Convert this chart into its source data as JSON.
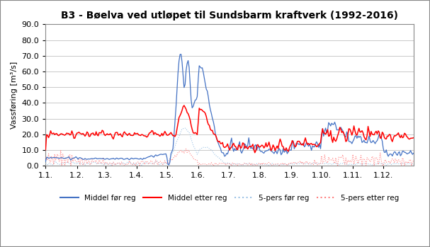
{
  "title": "B3 - Bøelva ved utløpet til Sundsbarm kraftverk (1992-2016)",
  "ylabel": "Vassføring [m³/s]",
  "ylim": [
    0.0,
    90.0
  ],
  "yticks": [
    0.0,
    10.0,
    20.0,
    30.0,
    40.0,
    50.0,
    60.0,
    70.0,
    80.0,
    90.0
  ],
  "xtick_labels": [
    "1.1.",
    "1.2.",
    "1.3.",
    "1.4.",
    "1.5.",
    "1.6.",
    "1.7.",
    "1.8.",
    "1.9.",
    "1.10.",
    "1.11.",
    "1.12."
  ],
  "legend": [
    {
      "label": "Middel før reg",
      "color": "#4472C4",
      "linestyle": "solid"
    },
    {
      "label": "Middel etter reg",
      "color": "#FF0000",
      "linestyle": "solid"
    },
    {
      "label": "5-pers før reg",
      "color": "#9DC3E6",
      "linestyle": "dotted"
    },
    {
      "label": "5-pers etter reg",
      "color": "#FF8080",
      "linestyle": "dotted"
    }
  ],
  "background_color": "#FFFFFF",
  "plot_bg_color": "#FFFFFF",
  "grid_color": "#C0C0C0",
  "title_fontsize": 10,
  "axis_fontsize": 8,
  "tick_fontsize": 8
}
